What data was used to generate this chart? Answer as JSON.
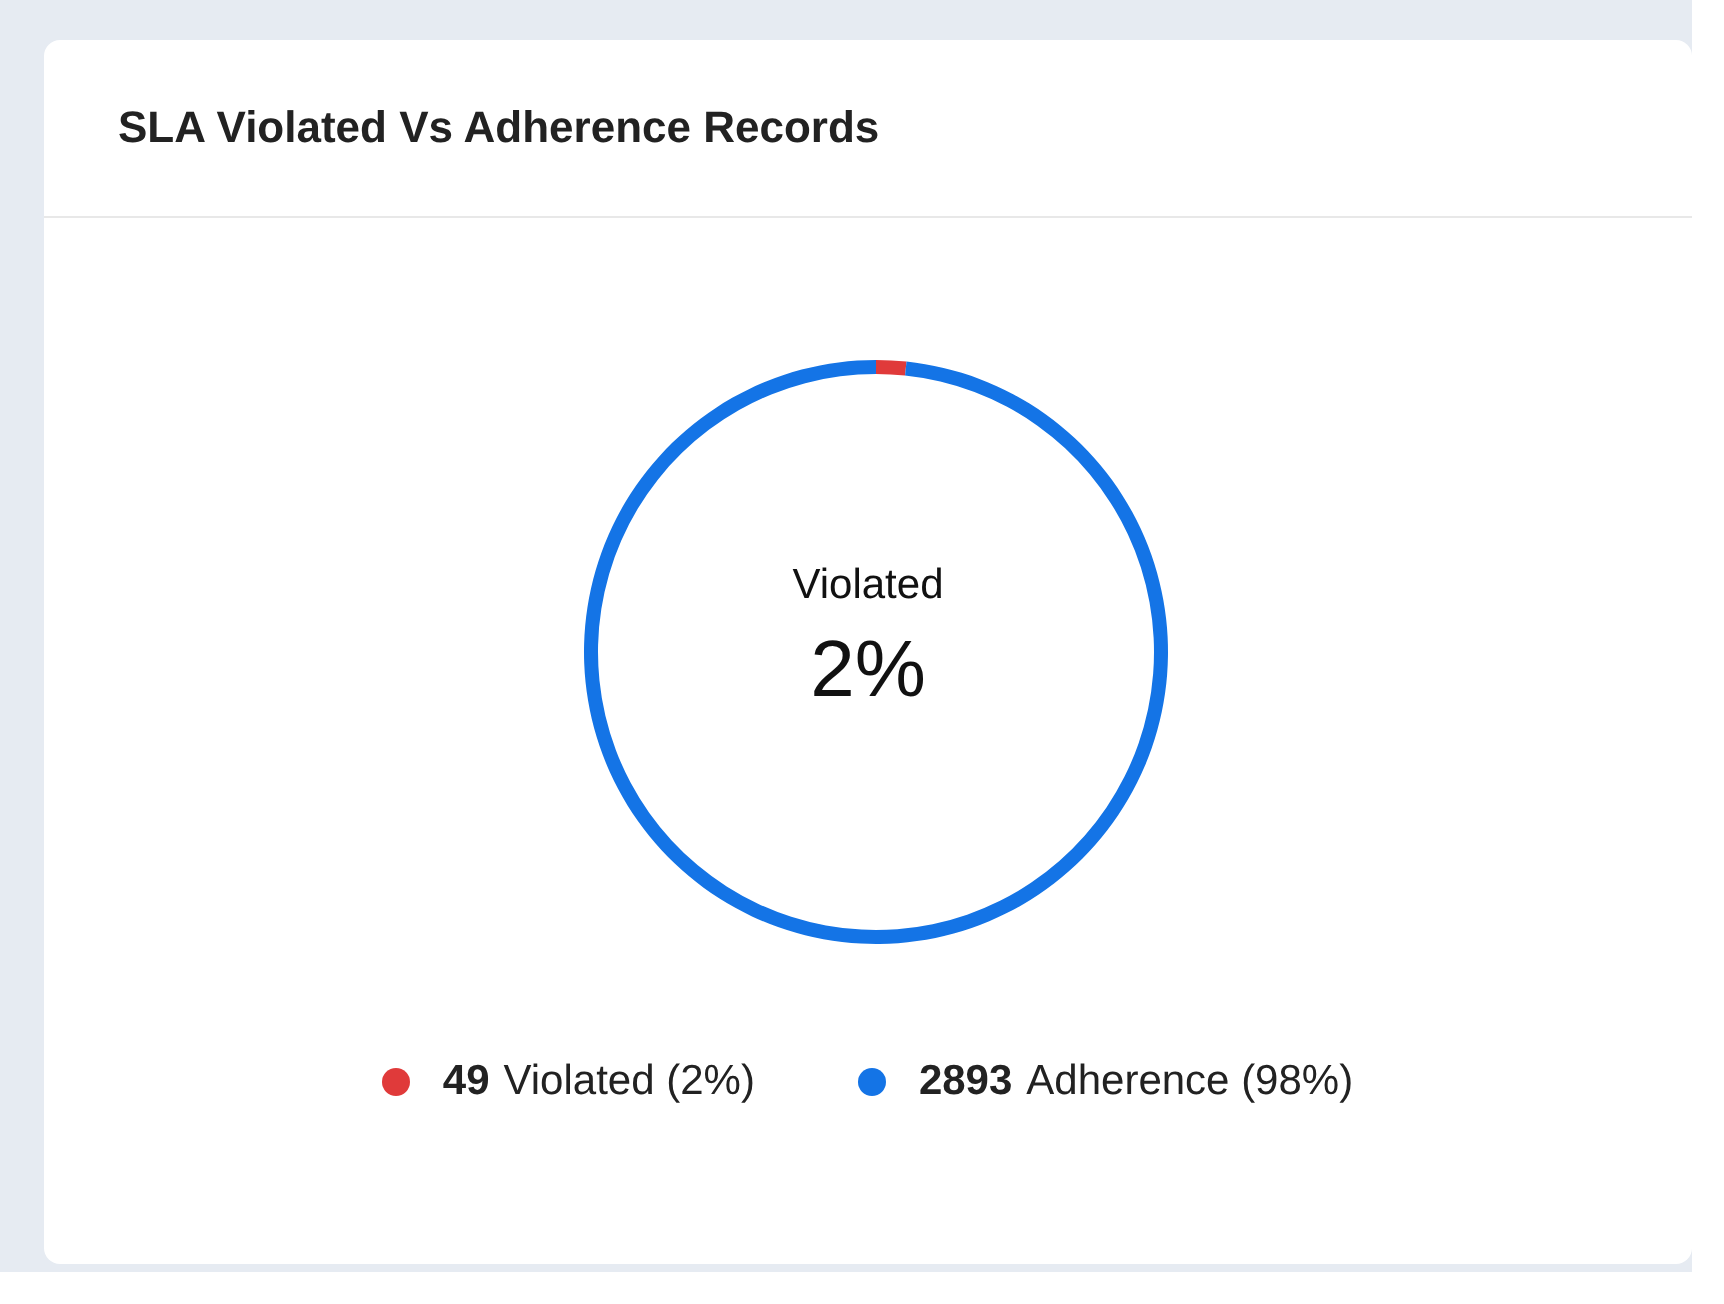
{
  "chart_data": {
    "type": "donut",
    "title": "SLA Violated Vs Adherence Records",
    "categories": [
      "Violated (2%)",
      "Adherence (98%)"
    ],
    "values": [
      49,
      2893
    ],
    "colors": [
      "#e03a3a",
      "#1474e6"
    ],
    "data_labels": true,
    "annotations": [
      "Violated",
      "2%"
    ],
    "legend": "bottom"
  }
}
